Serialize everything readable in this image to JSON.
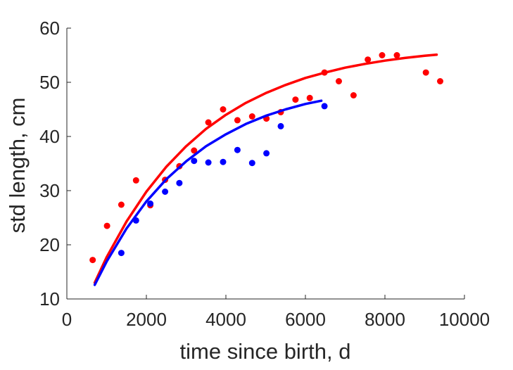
{
  "chart_data": {
    "type": "scatter",
    "title": "",
    "xlabel": "time since birth, d",
    "ylabel": "std length, cm",
    "xlim": [
      0,
      10000
    ],
    "ylim": [
      10,
      60
    ],
    "xticks": [
      0,
      2000,
      4000,
      6000,
      8000,
      10000
    ],
    "yticks": [
      10,
      20,
      30,
      40,
      50,
      60
    ],
    "xtick_labels": [
      "0",
      "2000",
      "4000",
      "6000",
      "8000",
      "10000"
    ],
    "ytick_labels": [
      "10",
      "20",
      "30",
      "40",
      "50",
      "60"
    ],
    "grid": false,
    "legend": "none",
    "series": [
      {
        "color": "#ff0000",
        "points": {
          "x": [
            650,
            1010,
            1370,
            1740,
            2100,
            2470,
            2830,
            3200,
            3560,
            3930,
            4290,
            4660,
            5020,
            5380,
            5750,
            6110,
            6480,
            6840,
            7210,
            7570,
            7930,
            8300,
            9030,
            9390
          ],
          "y": [
            17.2,
            23.5,
            27.4,
            31.9,
            27.3,
            32.0,
            34.5,
            37.4,
            42.6,
            45.0,
            43.0,
            43.7,
            43.3,
            44.5,
            46.8,
            47.1,
            51.8,
            50.2,
            47.6,
            54.2,
            55.0,
            55.0,
            51.8,
            50.2
          ]
        },
        "fit": {
          "x": [
            700,
            1000,
            1500,
            2000,
            2500,
            3000,
            3500,
            4000,
            4500,
            5000,
            5500,
            6000,
            6500,
            7000,
            7500,
            8000,
            8500,
            9000,
            9300
          ],
          "y": [
            13.0,
            17.7,
            24.3,
            29.8,
            34.4,
            38.2,
            41.4,
            44.0,
            46.2,
            48.0,
            49.5,
            50.8,
            51.8,
            52.7,
            53.4,
            54.0,
            54.5,
            54.9,
            55.1
          ]
        }
      },
      {
        "color": "#0000ff",
        "points": {
          "x": [
            1370,
            1740,
            2100,
            2470,
            2830,
            3200,
            3560,
            3930,
            4290,
            4660,
            5020,
            5380,
            6480
          ],
          "y": [
            18.5,
            24.5,
            27.6,
            29.8,
            31.4,
            35.5,
            35.2,
            35.3,
            37.5,
            35.1,
            36.9,
            41.9,
            45.6
          ]
        },
        "fit": {
          "x": [
            700,
            1000,
            1500,
            2000,
            2500,
            3000,
            3500,
            4000,
            4500,
            5000,
            5500,
            6000,
            6400
          ],
          "y": [
            12.6,
            16.9,
            23.0,
            28.0,
            32.1,
            35.4,
            38.2,
            40.4,
            42.3,
            43.8,
            45.0,
            46.0,
            46.6
          ]
        }
      }
    ]
  }
}
